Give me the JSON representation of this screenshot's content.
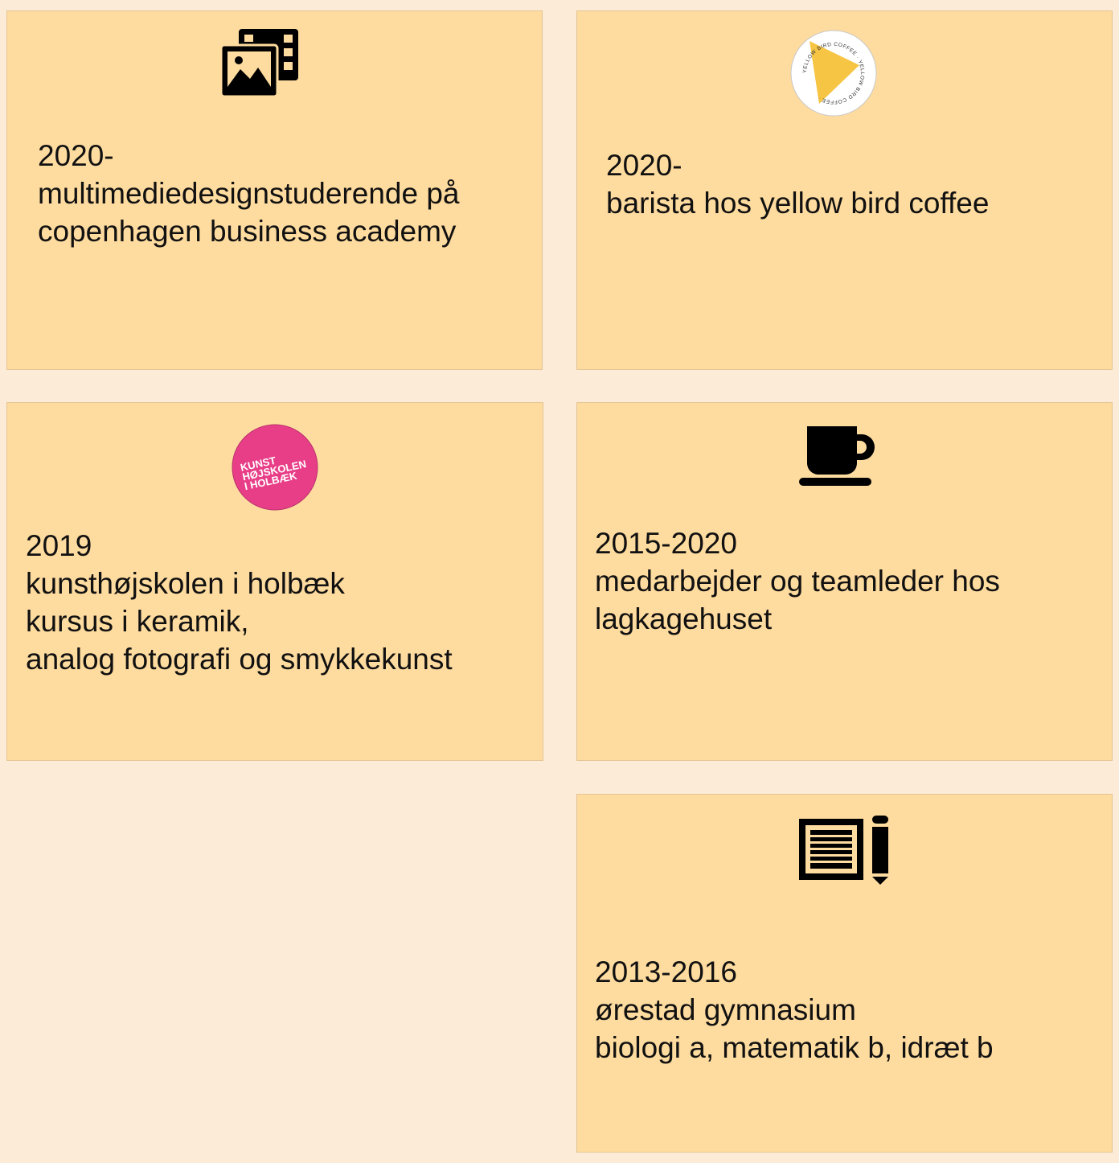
{
  "cards": [
    {
      "icon": "photo-gallery-icon",
      "lines": [
        "2020-",
        "multimediedesignstuderende på",
        "copenhagen business academy"
      ]
    },
    {
      "icon": "yellow-bird-coffee-logo",
      "logo_text": "YELLOW BIRD COFFEE · YELLOW BIRD COFFEE ·",
      "lines": [
        "2020-",
        "barista hos yellow bird coffee"
      ]
    },
    {
      "icon": "kunsthojskolen-logo",
      "logo_text": [
        "KUNST",
        "HØJSKOLEN",
        "I HOLBÆK"
      ],
      "lines": [
        "2019",
        "kunsthøjskolen i holbæk",
        "kursus i keramik,",
        "analog fotografi og smykkekunst"
      ]
    },
    {
      "icon": "coffee-cup-icon",
      "lines": [
        "2015-2020",
        "medarbejder og teamleder hos",
        "lagkagehuset"
      ]
    },
    {
      "icon": "notebook-pencil-icon",
      "lines": [
        "2013-2016",
        "ørestad gymnasium",
        "biologi a, matematik b, idræt b"
      ]
    }
  ],
  "colors": {
    "page_background": "#fcebd7",
    "card_background": "#fedb9f",
    "card_border": "#e4c594",
    "text": "#111111",
    "yellow_bird": "#f7c544",
    "kunst_pink": "#e83e87"
  }
}
